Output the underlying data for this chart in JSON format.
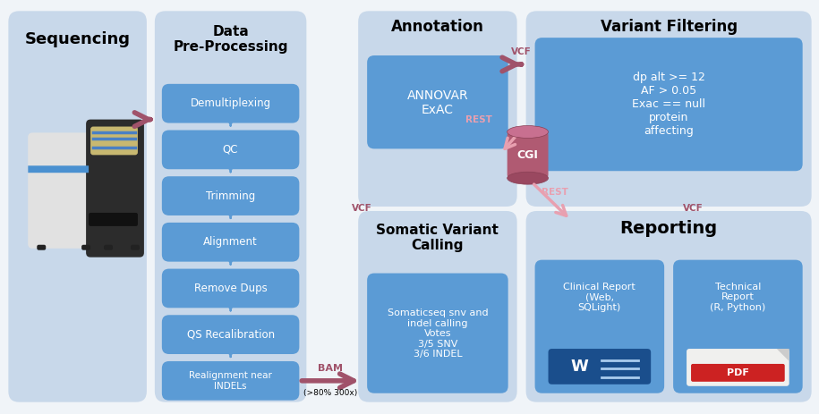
{
  "bg_color": "#f0f4f8",
  "panel_bg": "#c8d8ea",
  "box_blue": "#5b9bd5",
  "box_blue_report": "#5b9bd5",
  "arrow_pink": "#a0526a",
  "arrow_pink_light": "#e8a0b0",
  "text_black": "#000000",
  "text_white": "#ffffff",
  "preproc_steps": [
    "Demultiplexing",
    "QC",
    "Trimming",
    "Alignment",
    "Remove Dups",
    "QS Recalibration",
    "Realignment near\nINDELs"
  ],
  "annovar_box_text": "ANNOVAR\nExAC",
  "somatic_box_text": "Somaticseq snv and\nindel calling\nVotes\n3/5 SNV\n3/6 INDEL",
  "varfilt_box_text": "dp alt >= 12\nAF > 0.05\nExac == null\nprotein\naffecting",
  "clinical_report_text": "Clinical Report\n(Web,\nSQLight)",
  "technical_report_text": "Technical\nReport\n(R, Python)"
}
